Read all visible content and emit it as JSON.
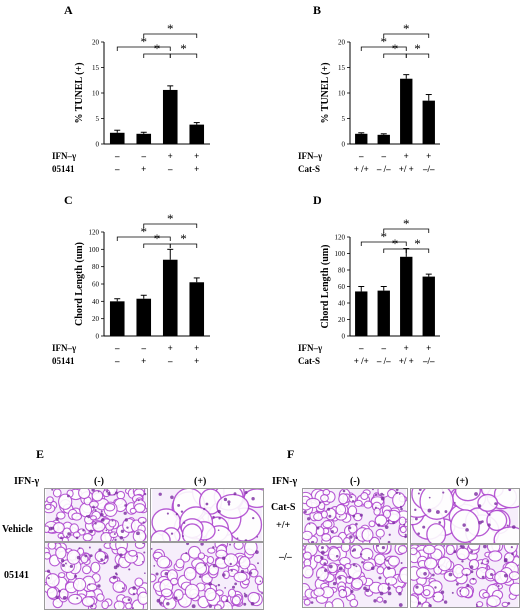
{
  "chart_data": [
    {
      "panel": "A",
      "type": "bar",
      "ylabel": "% TUNEL (+)",
      "ylim": [
        0,
        20
      ],
      "yticks": [
        0,
        5,
        10,
        15,
        20
      ],
      "values": [
        2.2,
        2.0,
        10.6,
        3.8
      ],
      "errors": [
        0.5,
        0.3,
        0.8,
        0.4
      ],
      "rows": [
        {
          "label": "IFN–γ",
          "values": [
            "–",
            "–",
            "+",
            "+"
          ]
        },
        {
          "label": "05141",
          "values": [
            "–",
            "+",
            "–",
            "+"
          ]
        }
      ],
      "significance": [
        {
          "from": 0,
          "to": 2,
          "level": 1,
          "label": "*"
        },
        {
          "from": 1,
          "to": 2,
          "level": 0,
          "label": "*"
        },
        {
          "from": 2,
          "to": 3,
          "level": 0,
          "label": "*"
        },
        {
          "from": 1,
          "to": 3,
          "level": 2,
          "label": "*"
        }
      ]
    },
    {
      "panel": "B",
      "type": "bar",
      "ylabel": "% TUNEL (+)",
      "ylim": [
        0,
        20
      ],
      "yticks": [
        0,
        5,
        10,
        15,
        20
      ],
      "values": [
        2.0,
        1.8,
        12.8,
        8.5
      ],
      "errors": [
        0.2,
        0.2,
        0.8,
        1.2
      ],
      "rows": [
        {
          "label": "IFN–γ",
          "values": [
            "–",
            "–",
            "+",
            "+"
          ]
        },
        {
          "label": "Cat-S",
          "values": [
            "+ /+",
            "– /–",
            "+/ +",
            "–/–"
          ]
        }
      ],
      "significance": [
        {
          "from": 0,
          "to": 2,
          "level": 1,
          "label": "*"
        },
        {
          "from": 1,
          "to": 2,
          "level": 0,
          "label": "*"
        },
        {
          "from": 2,
          "to": 3,
          "level": 0,
          "label": "*"
        },
        {
          "from": 1,
          "to": 3,
          "level": 2,
          "label": "*"
        }
      ]
    },
    {
      "panel": "C",
      "type": "bar",
      "ylabel": "Chord Length (um)",
      "ylim": [
        0,
        120
      ],
      "yticks": [
        0,
        20,
        40,
        60,
        80,
        100,
        120
      ],
      "values": [
        40,
        43,
        88,
        62
      ],
      "errors": [
        3,
        4,
        12,
        5
      ],
      "rows": [
        {
          "label": "IFN–γ",
          "values": [
            "–",
            "–",
            "+",
            "+"
          ]
        },
        {
          "label": "05141",
          "values": [
            "–",
            "+",
            "–",
            "+"
          ]
        }
      ],
      "significance": [
        {
          "from": 0,
          "to": 2,
          "level": 1,
          "label": "*"
        },
        {
          "from": 1,
          "to": 2,
          "level": 0,
          "label": "*"
        },
        {
          "from": 2,
          "to": 3,
          "level": 0,
          "label": "*"
        },
        {
          "from": 1,
          "to": 3,
          "level": 2,
          "label": "*"
        }
      ]
    },
    {
      "panel": "D",
      "type": "bar",
      "ylabel": "Chord Length (um)",
      "ylim": [
        0,
        120
      ],
      "yticks": [
        0,
        20,
        40,
        60,
        80,
        100,
        120
      ],
      "values": [
        54,
        55,
        96,
        72
      ],
      "errors": [
        6,
        5,
        10,
        3
      ],
      "rows": [
        {
          "label": "IFN–γ",
          "values": [
            "–",
            "–",
            "+",
            "+"
          ]
        },
        {
          "label": "Cat-S",
          "values": [
            "+ /+",
            "– /–",
            "+/ +",
            "–/–"
          ]
        }
      ],
      "significance": [
        {
          "from": 0,
          "to": 2,
          "level": 1,
          "label": "*"
        },
        {
          "from": 1,
          "to": 2,
          "level": 0,
          "label": "*"
        },
        {
          "from": 2,
          "to": 3,
          "level": 0,
          "label": "*"
        },
        {
          "from": 1,
          "to": 3,
          "level": 2,
          "label": "*"
        }
      ]
    }
  ],
  "histology": {
    "E": {
      "letter": "E",
      "factor_label": "IFN-γ",
      "col_neg": "(-)",
      "col_pos": "(+)",
      "row_top": "Vehicle",
      "row_bottom": "05141",
      "row_header": ""
    },
    "F": {
      "letter": "F",
      "factor_label": "IFN-γ",
      "col_neg": "(-)",
      "col_pos": "(+)",
      "row_top": "+/+",
      "row_bottom": "–/–",
      "row_header": "Cat-S"
    }
  },
  "colors": {
    "bar": "#000000",
    "tissue_stain": "#b04ad0",
    "tissue_background": "#f6eefb",
    "frame": "#9a9a9a"
  }
}
